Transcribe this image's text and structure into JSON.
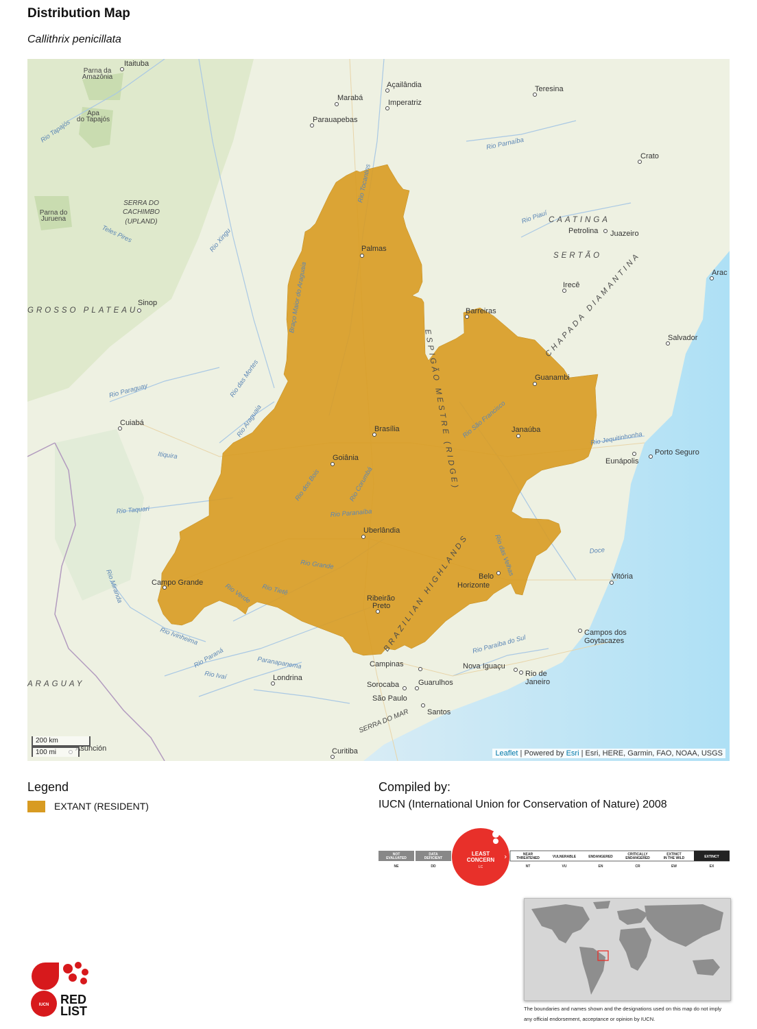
{
  "header": {
    "title": "Distribution Map",
    "species": "Callithrix penicillata"
  },
  "map": {
    "range_color": "#D89B22",
    "places": {
      "itaituba": "Itaituba",
      "acailandia": "Açailândia",
      "teresina": "Teresina",
      "maraba": "Marabá",
      "imperatriz": "Imperatriz",
      "parauapebas": "Parauapebas",
      "crato": "Crato",
      "palmas": "Palmas",
      "petrolina": "Petrolina",
      "juazeiro": "Juazeiro",
      "irece": "Irecê",
      "aracaju": "Arac",
      "sinop": "Sinop",
      "barreiras": "Barreiras",
      "salvador": "Salvador",
      "guanambi": "Guanambi",
      "cuiaba": "Cuiabá",
      "brasilia": "Brasília",
      "janauba": "Janaúba",
      "goiania": "Goiânia",
      "eunapolis": "Eunápolis",
      "porto_seguro": "Porto Seguro",
      "uberlandia": "Uberlândia",
      "vitoria": "Vitória",
      "campo_grande": "Campo Grande",
      "belo": "Belo",
      "horizonte": "Horizonte",
      "ribeirao": "Ribeirão",
      "preto": "Preto",
      "campos_dos": "Campos dos",
      "goytacazes": "Goytacazes",
      "campinas": "Campinas",
      "nova_iguacu": "Nova Iguaçu",
      "rio_de": "Rio de",
      "janeiro": "Janeiro",
      "londrina": "Londrina",
      "sorocaba": "Sorocaba",
      "guarulhos": "Guarulhos",
      "sao_paulo": "São Paulo",
      "santos": "Santos",
      "asuncion": "Asunción",
      "curitiba": "Curitiba"
    },
    "areas": {
      "parna_amazonia_1": "Parna da",
      "parna_amazonia_2": "Amazônia",
      "apa_tapajos_1": "Apa",
      "apa_tapajos_2": "do Tapajós",
      "parna_juruena_1": "Parna do",
      "parna_juruena_2": "Juruena",
      "serra_cachimbo_1": "SERRA DO",
      "serra_cachimbo_2": "CACHIMBO",
      "serra_cachimbo_3": "(UPLAND)",
      "caatinga": "CAATINGA",
      "sertao": "SERTÃO",
      "chapada": "CHAPADA DIAMANTINA",
      "mato_grosso": "GROSSO PLATEAU",
      "espigao": "ESPIGÃO MESTRE (RIDGE)",
      "brazilian_highlands": "BRAZILIAN HIGHLANDS",
      "paraguay": "ARAGUAY",
      "serra_do_mar": "SERRA DO MAR"
    },
    "rivers": {
      "tapajos": "Rio Tapajós",
      "parnaiba": "Rio Parnaíba",
      "teles_pires": "Teles Pires",
      "xingu": "Rio Xingu",
      "piaui": "Rio Piauí",
      "tocantins": "Rio Tocantins",
      "araguaia_top": "Braço Maior do Araguaia",
      "paraguay": "Rio Paraguay",
      "das_mortes": "Rio das Mortes",
      "araguaia": "Rio Araguaia",
      "sao_francisco": "Rio São Francisco",
      "jequitinhonha": "Rio Jequitinhonha",
      "itiquira": "Itiquira",
      "taquari": "Rio Taquari",
      "dos_bois": "Rio dos Bois",
      "corumba": "Rio Corumbá",
      "paranaiba": "Rio Paranaíba",
      "das_velhas": "Rio das Velhas",
      "doce": "Doce",
      "grande": "Rio Grande",
      "miranda": "Rio Miranda",
      "verde": "Rio Verde",
      "tiete": "Rio Tietê",
      "ivinheima": "Rio Ivinheima",
      "parana": "Rio Paraná",
      "paranapanema": "Paranapanema",
      "ivai": "Rio Ivaí",
      "paraiba_sul": "Rio Paraíba do Sul"
    },
    "scale": {
      "km": "200 km",
      "mi": "100 mi"
    },
    "attribution": {
      "leaflet": "Leaflet",
      "powered": " | Powered by ",
      "esri": "Esri",
      "sources": " | Esri, HERE, Garmin, FAO, NOAA, USGS"
    }
  },
  "legend": {
    "heading": "Legend",
    "items": [
      {
        "label": "EXTANT (RESIDENT)",
        "color": "#D89B22"
      }
    ]
  },
  "compiled": {
    "heading": "Compiled by:",
    "text": "IUCN (International Union for Conservation of Nature) 2008"
  },
  "status": {
    "current_code": "LC",
    "current_label_1": "LEAST",
    "current_label_2": "CONCERN",
    "highlight_color": "#E8302A",
    "categories": [
      {
        "label1": "NOT",
        "label2": "EVALUATED",
        "code": "NE"
      },
      {
        "label1": "DATA",
        "label2": "DEFICIENT",
        "code": "DD"
      },
      {
        "label1": "NEAR",
        "label2": "THREATENED",
        "code": "NT"
      },
      {
        "label1": "VULNERABLE",
        "label2": "",
        "code": "VU"
      },
      {
        "label1": "ENDANGERED",
        "label2": "",
        "code": "EN"
      },
      {
        "label1": "CRITICALLY",
        "label2": "ENDANGERED",
        "code": "CR"
      },
      {
        "label1": "EXTINCT",
        "label2": "IN THE WILD",
        "code": "EW"
      },
      {
        "label1": "EXTINCT",
        "label2": "",
        "code": "EX"
      }
    ]
  },
  "disclaimer": "The boundaries and names shown and the designations used on this map do not imply any official endorsement, acceptance or opinion by IUCN.",
  "logo": {
    "iucn": "IUCN",
    "red": "RED",
    "list": "LIST"
  }
}
